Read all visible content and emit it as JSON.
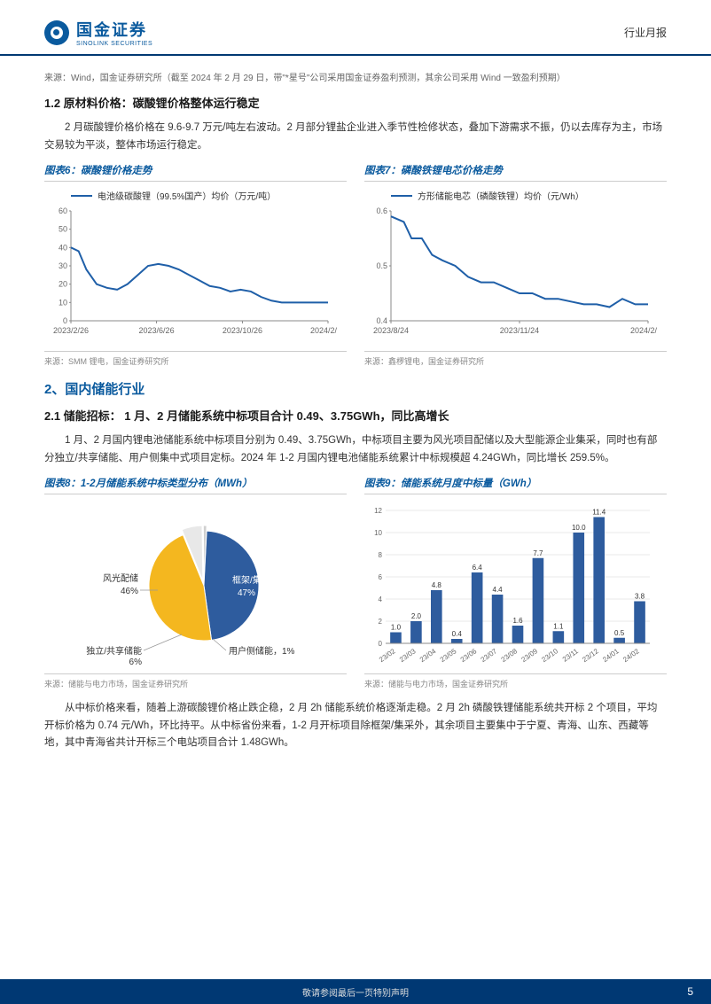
{
  "header": {
    "logo_cn": "国金证券",
    "logo_en": "SINOLINK SECURITIES",
    "doc_type": "行业月报"
  },
  "source_top": "来源：Wind，国金证券研究所（截至 2024 年 2 月 29 日，带\"*星号\"公司采用国金证券盈利预测，其余公司采用 Wind 一致盈利预期）",
  "section_1_2": {
    "title": "1.2 原材料价格：碳酸锂价格整体运行稳定",
    "body": "2 月碳酸锂价格价格在 9.6-9.7 万元/吨左右波动。2 月部分锂盐企业进入季节性检修状态，叠加下游需求不振，仍以去库存为主，市场交易较为平淡，整体市场运行稳定。"
  },
  "chart6": {
    "title": "图表6：碳酸锂价格走势",
    "type": "line",
    "legend": "电池级碳酸锂（99.5%国产）均价（万元/吨）",
    "line_color": "#1f5fa8",
    "x_labels": [
      "2023/2/26",
      "2023/6/26",
      "2023/10/26",
      "2024/2/26"
    ],
    "x_positions": [
      0,
      0.333,
      0.667,
      1.0
    ],
    "ylim": [
      0,
      60
    ],
    "yticks": [
      0,
      10,
      20,
      30,
      40,
      50,
      60
    ],
    "points": [
      [
        0.0,
        40
      ],
      [
        0.03,
        38
      ],
      [
        0.06,
        28
      ],
      [
        0.1,
        20
      ],
      [
        0.14,
        18
      ],
      [
        0.18,
        17
      ],
      [
        0.22,
        20
      ],
      [
        0.26,
        25
      ],
      [
        0.3,
        30
      ],
      [
        0.34,
        31
      ],
      [
        0.38,
        30
      ],
      [
        0.42,
        28
      ],
      [
        0.46,
        25
      ],
      [
        0.5,
        22
      ],
      [
        0.54,
        19
      ],
      [
        0.58,
        18
      ],
      [
        0.62,
        16
      ],
      [
        0.66,
        17
      ],
      [
        0.7,
        16
      ],
      [
        0.74,
        13
      ],
      [
        0.78,
        11
      ],
      [
        0.82,
        10
      ],
      [
        0.86,
        10
      ],
      [
        0.9,
        10
      ],
      [
        0.94,
        10
      ],
      [
        1.0,
        10
      ]
    ],
    "grid_color": "#e0e0e0",
    "background_color": "#ffffff",
    "source": "来源：SMM 锂电，国金证券研究所"
  },
  "chart7": {
    "title": "图表7：磷酸铁锂电芯价格走势",
    "type": "line",
    "legend": "方形储能电芯（磷酸铁锂）均价（元/Wh）",
    "line_color": "#1f5fa8",
    "x_labels": [
      "2023/8/24",
      "2023/11/24",
      "2024/2/24"
    ],
    "x_positions": [
      0,
      0.5,
      1.0
    ],
    "ylim": [
      0.4,
      0.6
    ],
    "yticks": [
      0.4,
      0.5,
      0.6
    ],
    "points": [
      [
        0.0,
        0.59
      ],
      [
        0.05,
        0.58
      ],
      [
        0.08,
        0.55
      ],
      [
        0.12,
        0.55
      ],
      [
        0.16,
        0.52
      ],
      [
        0.2,
        0.51
      ],
      [
        0.25,
        0.5
      ],
      [
        0.3,
        0.48
      ],
      [
        0.35,
        0.47
      ],
      [
        0.4,
        0.47
      ],
      [
        0.45,
        0.46
      ],
      [
        0.5,
        0.45
      ],
      [
        0.55,
        0.45
      ],
      [
        0.6,
        0.44
      ],
      [
        0.65,
        0.44
      ],
      [
        0.7,
        0.435
      ],
      [
        0.75,
        0.43
      ],
      [
        0.8,
        0.43
      ],
      [
        0.85,
        0.425
      ],
      [
        0.9,
        0.44
      ],
      [
        0.95,
        0.43
      ],
      [
        1.0,
        0.43
      ]
    ],
    "grid_color": "#e0e0e0",
    "background_color": "#ffffff",
    "source": "来源：鑫椤锂电，国金证券研究所"
  },
  "section_2": {
    "title": "2、国内储能行业"
  },
  "section_2_1": {
    "title": "2.1 储能招标： 1 月、2 月储能系统中标项目合计 0.49、3.75GWh，同比高增长",
    "body": "1 月、2 月国内锂电池储能系统中标项目分别为 0.49、3.75GWh，中标项目主要为风光项目配储以及大型能源企业集采，同时也有部分独立/共享储能、用户侧集中式项目定标。2024 年 1-2 月国内锂电池储能系统累计中标规模超 4.24GWh，同比增长 259.5%。"
  },
  "chart8": {
    "title": "图表8：1-2月储能系统中标类型分布（MWh）",
    "type": "pie",
    "slices": [
      {
        "label": "框架/集采",
        "value": 47,
        "color": "#2e5c9e",
        "label_text": "框架/集采\n47%"
      },
      {
        "label": "风光配储",
        "value": 46,
        "color": "#f4b71f",
        "label_text": "风光配储\n46%"
      },
      {
        "label": "独立/共享储能",
        "value": 6,
        "color": "#e8e8e8",
        "label_text": "独立/共享储能\n6%"
      },
      {
        "label": "用户侧储能",
        "value": 1,
        "color": "#d0d0d0",
        "label_text": "用户侧储能，1%"
      }
    ],
    "background_color": "#ffffff",
    "source": "来源：储能与电力市场，国金证券研究所"
  },
  "chart9": {
    "title": "图表9：储能系统月度中标量（GWh）",
    "type": "bar",
    "categories": [
      "23/02",
      "23/03",
      "23/04",
      "23/05",
      "23/06",
      "23/07",
      "23/08",
      "23/09",
      "23/10",
      "23/11",
      "23/12",
      "24/01",
      "24/02"
    ],
    "values": [
      1.0,
      2.0,
      4.8,
      0.4,
      6.4,
      4.4,
      1.6,
      7.7,
      1.1,
      10.0,
      11.4,
      0.5,
      3.8
    ],
    "bar_color": "#2e5c9e",
    "ylim": [
      0,
      12
    ],
    "yticks": [
      0,
      2,
      4,
      6,
      8,
      10,
      12
    ],
    "background_color": "#ffffff",
    "grid_color": "#e8e8e8",
    "source": "来源：储能与电力市场，国金证券研究所"
  },
  "body_after_charts": "从中标价格来看，随着上游碳酸锂价格止跌企稳，2 月 2h 储能系统价格逐渐走稳。2 月 2h 磷酸铁锂储能系统共开标 2 个项目，平均开标价格为 0.74 元/Wh，环比持平。从中标省份来看，1-2 月开标项目除框架/集采外，其余项目主要集中于宁夏、青海、山东、西藏等地，其中青海省共计开标三个电站项目合计 1.48GWh。",
  "footer": {
    "text": "敬请参阅最后一页特别声明",
    "page": "5"
  }
}
